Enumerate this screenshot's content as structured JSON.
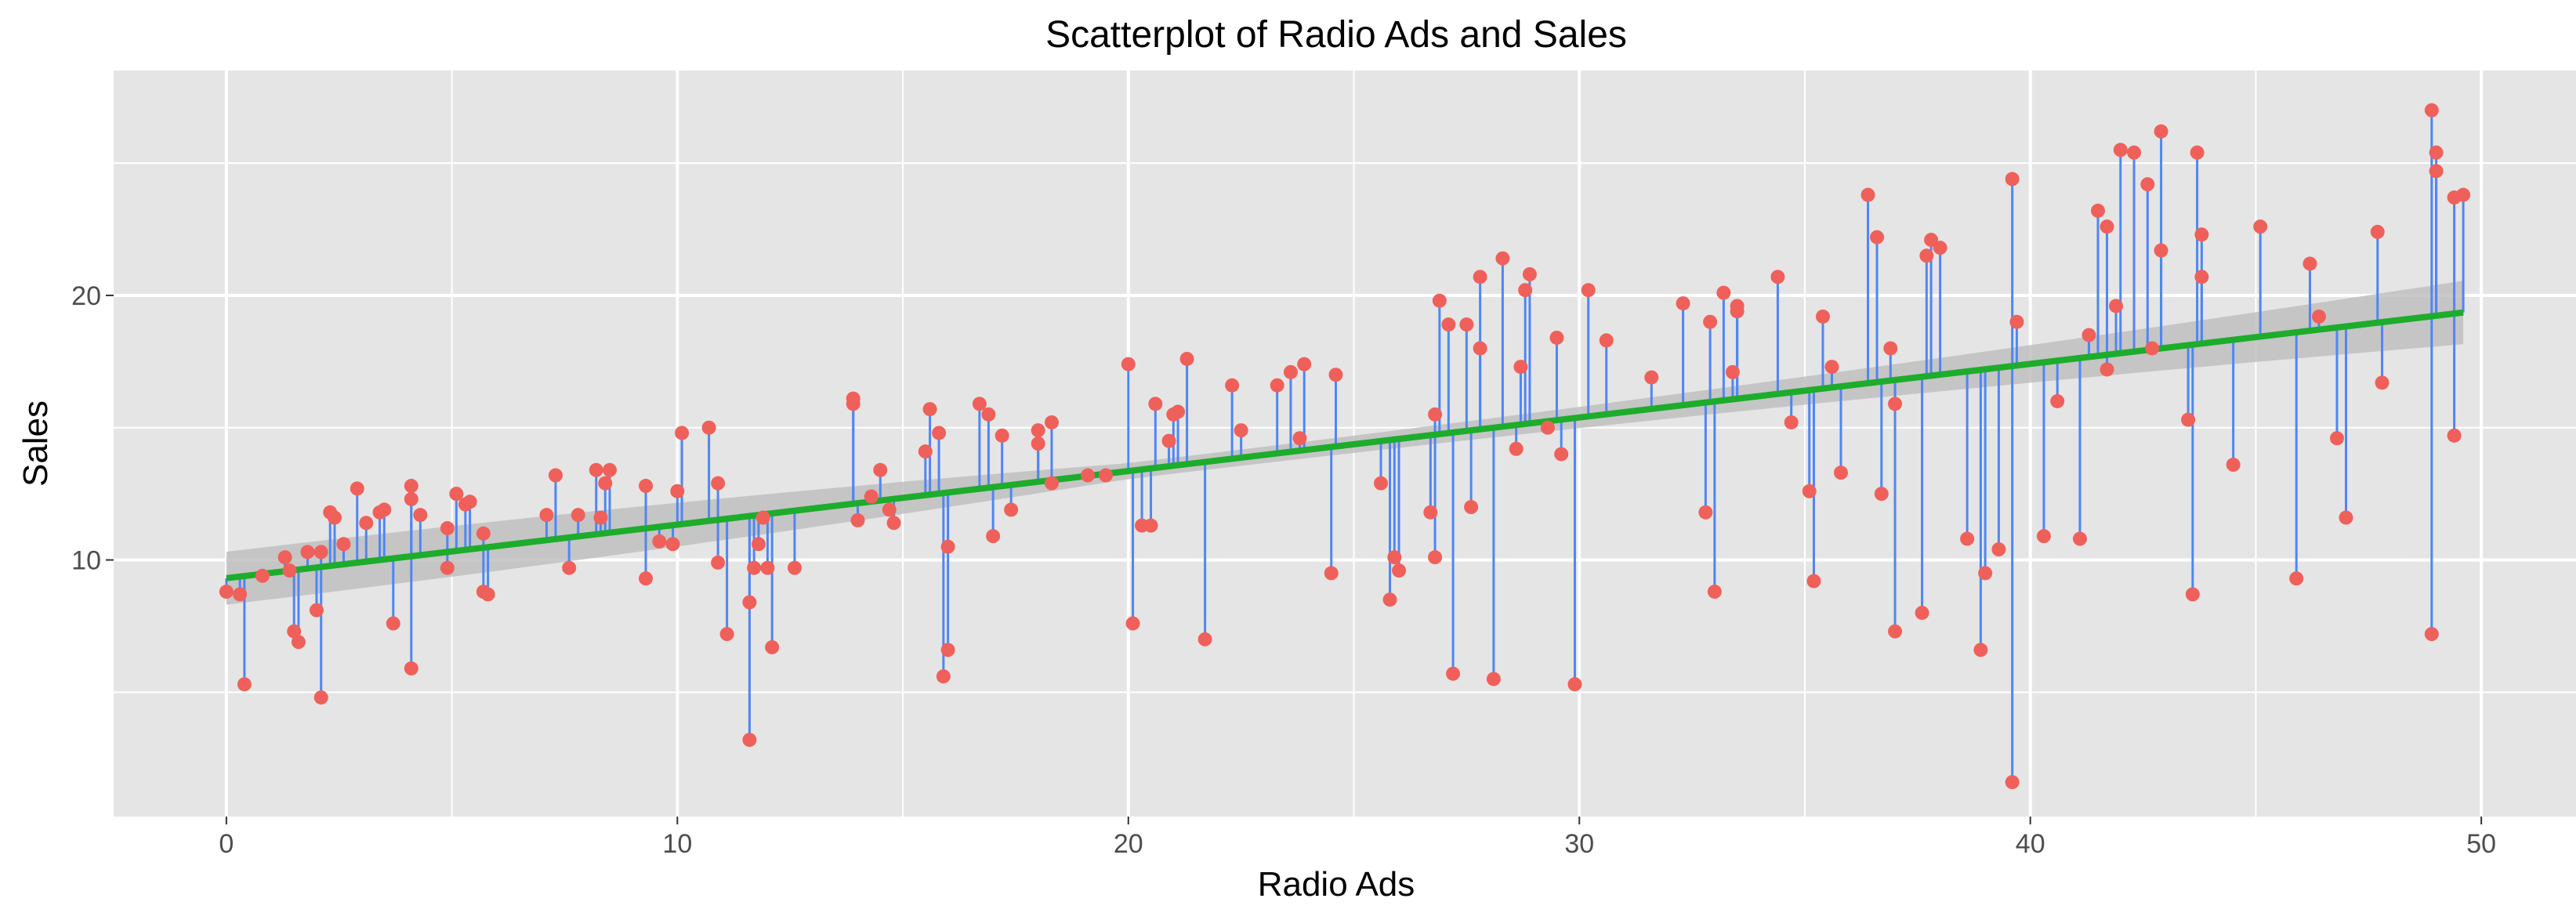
{
  "chart_data": {
    "type": "scatter",
    "title": "Scatterplot of Radio Ads and Sales",
    "xlabel": "Radio Ads",
    "ylabel": "Sales",
    "xlim": [
      -2.5,
      52.1
    ],
    "ylim": [
      0.3,
      28.5
    ],
    "x_ticks": [
      0,
      10,
      20,
      30,
      40,
      50
    ],
    "y_ticks": [
      10,
      20
    ],
    "x_minor_ticks": [
      5,
      15,
      25,
      35,
      45
    ],
    "y_minor_ticks": [
      5,
      15,
      25
    ],
    "regression": {
      "intercept": 9.31,
      "slope": 0.2025,
      "x_range": [
        0,
        49.6
      ]
    },
    "confidence_band": {
      "halfwidth_at_start": 1.0,
      "halfwidth_min": 0.3,
      "x_at_min": 20,
      "halfwidth_at_end": 1.2
    },
    "grid": true,
    "legend": "none",
    "colors": {
      "panel": "#e5e5e5",
      "grid": "#ffffff",
      "points": "#f0605a",
      "residual_lines": "#4f86f5",
      "fit_line": "#1dac2b",
      "band": "#bfbfbf"
    },
    "points": [
      [
        0.0,
        8.8
      ],
      [
        0.3,
        8.7
      ],
      [
        0.4,
        5.3
      ],
      [
        0.8,
        9.4
      ],
      [
        1.3,
        10.1
      ],
      [
        1.4,
        9.6
      ],
      [
        1.5,
        7.3
      ],
      [
        1.6,
        6.9
      ],
      [
        1.8,
        10.3
      ],
      [
        2.0,
        8.1
      ],
      [
        2.1,
        4.8
      ],
      [
        2.1,
        10.3
      ],
      [
        2.3,
        11.8
      ],
      [
        2.4,
        11.6
      ],
      [
        2.6,
        10.6
      ],
      [
        2.9,
        12.7
      ],
      [
        3.1,
        11.4
      ],
      [
        3.4,
        11.8
      ],
      [
        3.5,
        11.9
      ],
      [
        3.7,
        7.6
      ],
      [
        4.1,
        12.8
      ],
      [
        4.1,
        12.3
      ],
      [
        4.1,
        5.9
      ],
      [
        4.3,
        11.7
      ],
      [
        4.9,
        11.2
      ],
      [
        4.9,
        9.7
      ],
      [
        5.1,
        12.5
      ],
      [
        5.3,
        12.1
      ],
      [
        5.4,
        12.2
      ],
      [
        5.7,
        8.8
      ],
      [
        5.7,
        11.0
      ],
      [
        5.8,
        8.7
      ],
      [
        7.1,
        11.7
      ],
      [
        7.3,
        13.2
      ],
      [
        7.6,
        9.7
      ],
      [
        7.8,
        11.7
      ],
      [
        8.2,
        13.4
      ],
      [
        8.3,
        11.6
      ],
      [
        8.4,
        12.9
      ],
      [
        8.5,
        13.4
      ],
      [
        9.3,
        12.8
      ],
      [
        9.3,
        9.3
      ],
      [
        9.6,
        10.7
      ],
      [
        9.9,
        10.6
      ],
      [
        10.0,
        12.6
      ],
      [
        10.1,
        14.8
      ],
      [
        10.7,
        15.0
      ],
      [
        10.9,
        12.9
      ],
      [
        10.9,
        9.9
      ],
      [
        11.1,
        7.2
      ],
      [
        11.6,
        3.2
      ],
      [
        11.6,
        8.4
      ],
      [
        11.7,
        9.7
      ],
      [
        11.8,
        10.6
      ],
      [
        11.9,
        11.6
      ],
      [
        12.0,
        9.7
      ],
      [
        12.1,
        6.7
      ],
      [
        12.6,
        9.7
      ],
      [
        13.9,
        16.1
      ],
      [
        13.9,
        15.9
      ],
      [
        14.0,
        11.5
      ],
      [
        14.3,
        12.4
      ],
      [
        14.5,
        13.4
      ],
      [
        14.7,
        11.9
      ],
      [
        14.8,
        11.4
      ],
      [
        15.5,
        14.1
      ],
      [
        15.6,
        15.7
      ],
      [
        15.8,
        14.8
      ],
      [
        15.9,
        5.6
      ],
      [
        16.0,
        6.6
      ],
      [
        16.0,
        10.5
      ],
      [
        16.7,
        15.9
      ],
      [
        16.9,
        15.5
      ],
      [
        17.0,
        10.9
      ],
      [
        17.2,
        14.7
      ],
      [
        17.4,
        11.9
      ],
      [
        18.0,
        14.9
      ],
      [
        18.0,
        14.4
      ],
      [
        18.3,
        15.2
      ],
      [
        18.3,
        12.9
      ],
      [
        19.1,
        13.2
      ],
      [
        19.5,
        13.2
      ],
      [
        20.0,
        17.4
      ],
      [
        20.1,
        7.6
      ],
      [
        20.3,
        11.3
      ],
      [
        20.5,
        11.3
      ],
      [
        20.6,
        15.9
      ],
      [
        20.9,
        14.5
      ],
      [
        21.0,
        15.5
      ],
      [
        21.1,
        15.6
      ],
      [
        21.3,
        17.6
      ],
      [
        21.7,
        7.0
      ],
      [
        22.3,
        16.6
      ],
      [
        22.5,
        14.9
      ],
      [
        23.3,
        16.6
      ],
      [
        23.6,
        17.1
      ],
      [
        23.8,
        14.6
      ],
      [
        23.9,
        17.4
      ],
      [
        24.5,
        9.5
      ],
      [
        24.6,
        17.0
      ],
      [
        25.6,
        12.9
      ],
      [
        25.8,
        8.5
      ],
      [
        25.9,
        10.1
      ],
      [
        26.0,
        9.6
      ],
      [
        26.7,
        11.8
      ],
      [
        26.8,
        10.1
      ],
      [
        26.8,
        15.5
      ],
      [
        26.9,
        19.8
      ],
      [
        27.1,
        18.9
      ],
      [
        27.2,
        5.7
      ],
      [
        27.5,
        18.9
      ],
      [
        27.6,
        12.0
      ],
      [
        27.8,
        20.7
      ],
      [
        27.8,
        18.0
      ],
      [
        28.1,
        5.5
      ],
      [
        28.3,
        21.4
      ],
      [
        28.6,
        14.2
      ],
      [
        28.7,
        17.3
      ],
      [
        28.8,
        20.2
      ],
      [
        28.9,
        20.8
      ],
      [
        29.3,
        15.0
      ],
      [
        29.5,
        18.4
      ],
      [
        29.6,
        14.0
      ],
      [
        29.9,
        5.3
      ],
      [
        30.2,
        20.2
      ],
      [
        30.6,
        18.3
      ],
      [
        31.6,
        16.9
      ],
      [
        32.3,
        19.7
      ],
      [
        32.8,
        11.8
      ],
      [
        32.9,
        19.0
      ],
      [
        33.0,
        8.8
      ],
      [
        33.2,
        20.1
      ],
      [
        33.4,
        17.1
      ],
      [
        33.5,
        19.6
      ],
      [
        33.5,
        19.4
      ],
      [
        34.4,
        20.7
      ],
      [
        34.7,
        15.2
      ],
      [
        35.1,
        12.6
      ],
      [
        35.2,
        9.2
      ],
      [
        35.4,
        19.2
      ],
      [
        35.6,
        17.3
      ],
      [
        35.8,
        13.3
      ],
      [
        36.4,
        23.8
      ],
      [
        36.6,
        22.2
      ],
      [
        36.7,
        12.5
      ],
      [
        36.9,
        18.0
      ],
      [
        37.0,
        15.9
      ],
      [
        37.0,
        7.3
      ],
      [
        37.6,
        8.0
      ],
      [
        37.7,
        21.5
      ],
      [
        37.8,
        22.1
      ],
      [
        38.0,
        21.8
      ],
      [
        38.6,
        10.8
      ],
      [
        38.9,
        6.6
      ],
      [
        39.0,
        9.5
      ],
      [
        39.3,
        10.4
      ],
      [
        39.6,
        24.4
      ],
      [
        39.6,
        1.6
      ],
      [
        39.7,
        19.0
      ],
      [
        40.3,
        10.9
      ],
      [
        40.6,
        16.0
      ],
      [
        41.1,
        10.8
      ],
      [
        41.3,
        18.5
      ],
      [
        41.5,
        23.2
      ],
      [
        41.7,
        17.2
      ],
      [
        41.7,
        22.6
      ],
      [
        41.9,
        19.6
      ],
      [
        42.0,
        25.5
      ],
      [
        42.3,
        25.4
      ],
      [
        42.6,
        24.2
      ],
      [
        42.7,
        18.0
      ],
      [
        42.9,
        21.7
      ],
      [
        42.9,
        26.2
      ],
      [
        43.5,
        15.3
      ],
      [
        43.6,
        8.7
      ],
      [
        43.7,
        25.4
      ],
      [
        43.8,
        22.3
      ],
      [
        43.8,
        20.7
      ],
      [
        44.5,
        13.6
      ],
      [
        45.1,
        22.6
      ],
      [
        45.9,
        9.3
      ],
      [
        46.2,
        21.2
      ],
      [
        46.4,
        19.2
      ],
      [
        46.8,
        14.6
      ],
      [
        47.0,
        11.6
      ],
      [
        47.7,
        22.4
      ],
      [
        47.8,
        16.7
      ],
      [
        48.9,
        27.0
      ],
      [
        48.9,
        7.2
      ],
      [
        49.0,
        25.4
      ],
      [
        49.0,
        24.7
      ],
      [
        49.4,
        23.7
      ],
      [
        49.4,
        14.7
      ],
      [
        49.6,
        23.8
      ]
    ]
  }
}
